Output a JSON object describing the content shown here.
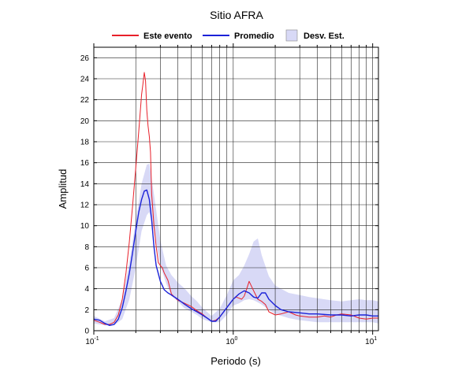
{
  "chart_data": {
    "type": "line",
    "title": "Sitio AFRA",
    "xlabel": "Periodo (s)",
    "ylabel": "Amplitud",
    "xscale": "log",
    "xlim": [
      0.1,
      11
    ],
    "ylim": [
      0,
      27
    ],
    "x_ticks": [
      {
        "base": "10",
        "exp": "-1",
        "value": 0.1
      },
      {
        "base": "10",
        "exp": "0",
        "value": 1
      },
      {
        "base": "10",
        "exp": "1",
        "value": 10
      }
    ],
    "y_ticks": [
      0,
      2,
      4,
      6,
      8,
      10,
      12,
      14,
      16,
      18,
      20,
      22,
      24,
      26
    ],
    "grid": true,
    "legend_position": "top",
    "legend": [
      {
        "label": "Este evento",
        "color": "#e8202a",
        "kind": "line"
      },
      {
        "label": "Promedio",
        "color": "#1b22d8",
        "kind": "line"
      },
      {
        "label": "Desv. Est.",
        "color": "#d8d9f6",
        "kind": "band"
      }
    ],
    "band": {
      "name": "Desv. Est.",
      "color": "#d8d9f6",
      "x": [
        0.1,
        0.12,
        0.14,
        0.16,
        0.18,
        0.2,
        0.22,
        0.24,
        0.25,
        0.27,
        0.3,
        0.33,
        0.36,
        0.4,
        0.45,
        0.5,
        0.55,
        0.6,
        0.7,
        0.8,
        0.9,
        1.0,
        1.1,
        1.2,
        1.3,
        1.4,
        1.5,
        1.6,
        1.8,
        2.0,
        2.5,
        3.0,
        3.5,
        4.0,
        5.0,
        6.0,
        7.0,
        8.0,
        9.0,
        10.0,
        11.0
      ],
      "upper": [
        1.4,
        0.9,
        1.2,
        3.0,
        6.5,
        10.5,
        14.0,
        15.8,
        15.9,
        13.0,
        8.6,
        6.2,
        5.3,
        4.6,
        4.0,
        3.3,
        2.8,
        2.2,
        1.4,
        2.1,
        3.4,
        4.8,
        5.3,
        6.2,
        7.3,
        8.5,
        8.8,
        7.2,
        5.2,
        4.3,
        3.6,
        3.4,
        3.2,
        3.1,
        2.9,
        2.8,
        2.9,
        3.0,
        2.9,
        2.9,
        2.8
      ],
      "lower": [
        0.7,
        0.5,
        0.5,
        1.1,
        3.0,
        6.0,
        9.5,
        11.0,
        11.3,
        9.5,
        6.2,
        4.5,
        3.3,
        2.8,
        2.1,
        1.8,
        1.5,
        1.1,
        0.8,
        0.8,
        1.5,
        2.4,
        2.6,
        2.9,
        3.0,
        2.9,
        2.7,
        2.5,
        2.0,
        1.6,
        1.2,
        1.0,
        0.9,
        0.8,
        0.8,
        0.8,
        0.8,
        0.8,
        0.8,
        0.8,
        0.7
      ]
    },
    "series": [
      {
        "name": "Este evento",
        "color": "#e8202a",
        "x": [
          0.1,
          0.11,
          0.12,
          0.13,
          0.14,
          0.15,
          0.16,
          0.17,
          0.18,
          0.19,
          0.2,
          0.21,
          0.22,
          0.225,
          0.23,
          0.235,
          0.24,
          0.245,
          0.25,
          0.255,
          0.26,
          0.27,
          0.28,
          0.29,
          0.3,
          0.31,
          0.32,
          0.34,
          0.36,
          0.38,
          0.4,
          0.45,
          0.5,
          0.55,
          0.6,
          0.65,
          0.7,
          0.75,
          0.8,
          0.9,
          1.0,
          1.05,
          1.1,
          1.15,
          1.2,
          1.25,
          1.3,
          1.4,
          1.5,
          1.6,
          1.7,
          1.8,
          2.0,
          2.2,
          2.5,
          2.8,
          3.0,
          3.5,
          4.0,
          4.5,
          5.0,
          5.5,
          6.0,
          7.0,
          8.0,
          9.0,
          10.0,
          11.0
        ],
        "y": [
          1.0,
          0.8,
          0.6,
          0.6,
          0.8,
          1.5,
          3.0,
          5.5,
          8.5,
          12.0,
          15.5,
          19.0,
          22.5,
          23.5,
          24.6,
          23.8,
          21.0,
          19.5,
          18.5,
          17.0,
          13.0,
          10.0,
          8.0,
          6.5,
          6.2,
          6.0,
          5.5,
          4.8,
          3.5,
          3.2,
          2.9,
          2.6,
          2.3,
          1.9,
          1.6,
          1.2,
          0.9,
          1.0,
          1.3,
          2.2,
          3.0,
          3.2,
          3.1,
          3.0,
          3.3,
          4.0,
          4.7,
          3.8,
          3.0,
          2.8,
          2.5,
          1.8,
          1.5,
          1.6,
          1.8,
          1.5,
          1.4,
          1.3,
          1.3,
          1.4,
          1.3,
          1.5,
          1.6,
          1.5,
          1.2,
          1.1,
          1.2,
          1.2
        ]
      },
      {
        "name": "Promedio",
        "color": "#1b22d8",
        "x": [
          0.1,
          0.11,
          0.12,
          0.13,
          0.14,
          0.15,
          0.16,
          0.17,
          0.18,
          0.19,
          0.2,
          0.21,
          0.22,
          0.23,
          0.24,
          0.25,
          0.26,
          0.27,
          0.28,
          0.3,
          0.32,
          0.34,
          0.36,
          0.4,
          0.45,
          0.5,
          0.55,
          0.6,
          0.65,
          0.7,
          0.75,
          0.8,
          0.9,
          1.0,
          1.1,
          1.2,
          1.3,
          1.4,
          1.5,
          1.6,
          1.7,
          1.8,
          2.0,
          2.2,
          2.5,
          3.0,
          3.5,
          4.0,
          5.0,
          6.0,
          7.0,
          8.0,
          9.0,
          10.0,
          11.0
        ],
        "y": [
          1.1,
          1.0,
          0.7,
          0.5,
          0.6,
          1.1,
          2.2,
          3.8,
          5.5,
          7.5,
          9.5,
          11.3,
          12.5,
          13.3,
          13.4,
          12.5,
          10.5,
          8.0,
          6.2,
          4.7,
          3.9,
          3.6,
          3.4,
          3.0,
          2.5,
          2.1,
          1.8,
          1.5,
          1.2,
          0.9,
          0.9,
          1.3,
          2.2,
          3.0,
          3.5,
          3.8,
          3.6,
          3.2,
          3.1,
          3.6,
          3.6,
          3.0,
          2.4,
          2.0,
          1.8,
          1.7,
          1.6,
          1.6,
          1.5,
          1.5,
          1.4,
          1.5,
          1.5,
          1.4,
          1.4
        ]
      }
    ]
  }
}
